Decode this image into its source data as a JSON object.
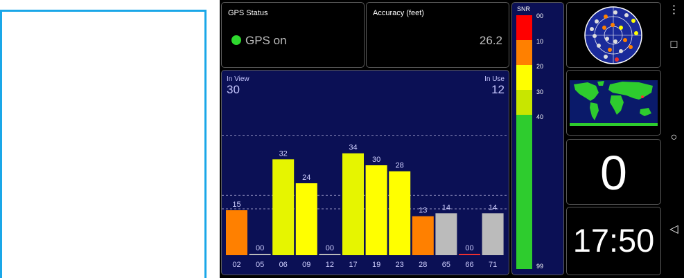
{
  "status": {
    "label": "GPS Status",
    "value": "GPS on"
  },
  "accuracy": {
    "label": "Accuracy (feet)",
    "value": "26.2"
  },
  "satellites": {
    "in_view_label": "In View",
    "in_view": "30",
    "in_use_label": "In Use",
    "in_use": "12"
  },
  "chart_data": {
    "type": "bar",
    "categories": [
      "02",
      "05",
      "06",
      "09",
      "12",
      "17",
      "19",
      "23",
      "28",
      "65",
      "66",
      "71"
    ],
    "values": [
      15,
      0,
      32,
      24,
      0,
      34,
      30,
      28,
      13,
      14,
      0,
      14
    ],
    "value_labels": [
      "15",
      "00",
      "32",
      "24",
      "00",
      "34",
      "30",
      "28",
      "13",
      "14",
      "00",
      "14"
    ],
    "colors": [
      "#ff8000",
      "#bbbbbb",
      "#e6f500",
      "#ffff00",
      "#bbbbbb",
      "#e6f500",
      "#ffff00",
      "#ffff00",
      "#ff8000",
      "#bbbbbb",
      "#ee3030",
      "#bbbbbb"
    ],
    "ylim": [
      0,
      60
    ],
    "grid": [
      20,
      40
    ]
  },
  "snr": {
    "title": "SNR",
    "ticks": [
      "00",
      "10",
      "20",
      "30",
      "40",
      "99"
    ],
    "colors": [
      "#ff0000",
      "#ff8000",
      "#ffff00",
      "#c8e600",
      "#2ecc2e"
    ]
  },
  "speed": {
    "value": "0"
  },
  "clock": {
    "value": "17:50"
  },
  "nav": {
    "menu": "⋮",
    "recents": "□",
    "home": "○",
    "back": "◁"
  }
}
